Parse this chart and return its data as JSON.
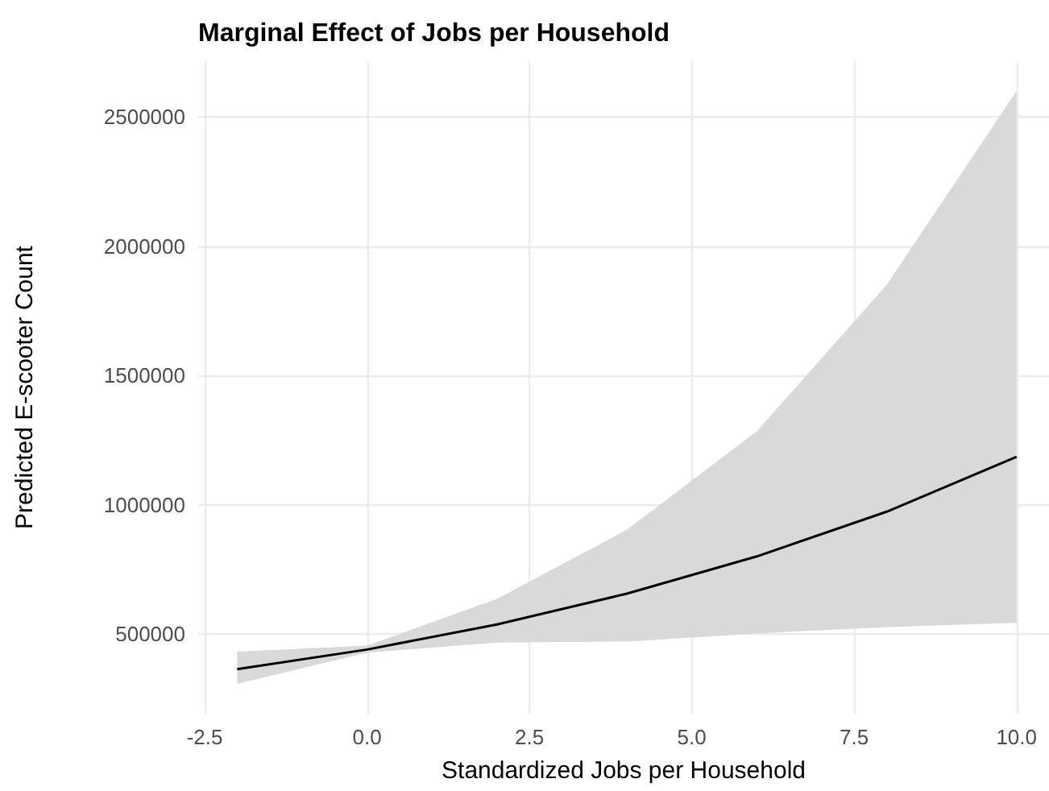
{
  "chart_data": {
    "type": "line",
    "title": "Marginal Effect of Jobs per Household",
    "xlabel": "Standardized Jobs per Household",
    "ylabel": "Predicted E-scooter Count",
    "x": [
      -2,
      0,
      2,
      4,
      6,
      8,
      10
    ],
    "series": [
      {
        "color": "#000000",
        "values": [
          364000,
          440000,
          537000,
          656000,
          800000,
          973000,
          1185000
        ],
        "lower": [
          307000,
          428000,
          467000,
          471000,
          502000,
          527000,
          543000
        ],
        "upper": [
          432000,
          455000,
          636000,
          903000,
          1284000,
          1850000,
          2600000
        ]
      }
    ],
    "xlim": [
      -2.6,
      10.5
    ],
    "xticks": [
      {
        "value": -2.5,
        "label": "-2.5"
      },
      {
        "value": 0,
        "label": "0.0"
      },
      {
        "value": 2.5,
        "label": "2.5"
      },
      {
        "value": 5,
        "label": "5.0"
      },
      {
        "value": 7.5,
        "label": "7.5"
      },
      {
        "value": 10,
        "label": "10.0"
      }
    ],
    "ylim": [
      192000,
      2715000
    ],
    "yticks": [
      500000,
      1000000,
      1500000,
      2000000,
      2500000
    ],
    "grid": true,
    "marker": "none",
    "line_style": "solid"
  }
}
